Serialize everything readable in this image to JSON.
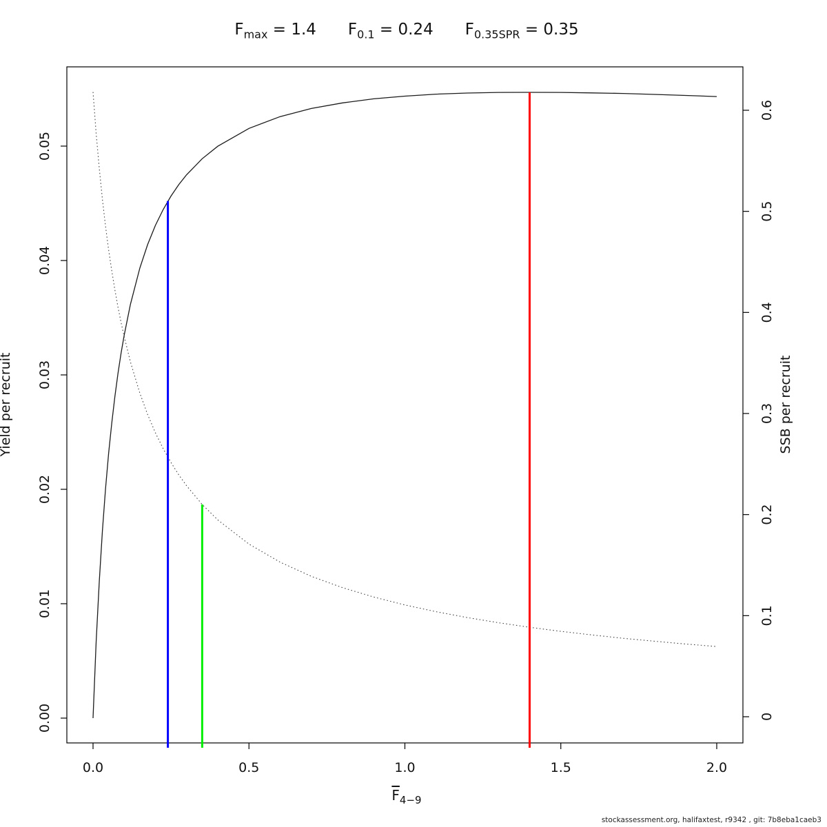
{
  "footer": "stockassessment.org, halifaxtest, r9342 , git: 7b8eba1caeb3",
  "chart_data": {
    "type": "line",
    "title_reference_points": [
      {
        "base": "F",
        "sub": "max",
        "eq": "=",
        "value": "1.4"
      },
      {
        "base": "F",
        "sub": "0.1",
        "eq": "=",
        "value": "0.24"
      },
      {
        "base": "F",
        "sub": "0.35SPR",
        "eq": "=",
        "value": "0.35"
      }
    ],
    "xlabel": {
      "base": "F",
      "overline": true,
      "sub": "4−9"
    },
    "ylabel_left": "Yield per recruit",
    "ylabel_right": "SSB per recruit",
    "x_axis": {
      "range": [
        0,
        2.0
      ],
      "ticks": [
        0.0,
        0.5,
        1.0,
        1.5,
        2.0
      ],
      "tick_labels": [
        "0.0",
        "0.5",
        "1.0",
        "1.5",
        "2.0"
      ]
    },
    "y_axis_left": {
      "range": [
        0,
        0.05
      ],
      "ticks": [
        0.0,
        0.01,
        0.02,
        0.03,
        0.04,
        0.05
      ],
      "tick_labels": [
        "0.00",
        "0.01",
        "0.02",
        "0.03",
        "0.04",
        "0.05"
      ]
    },
    "y_axis_right": {
      "range": [
        0,
        0.6
      ],
      "ticks": [
        0,
        0.1,
        0.2,
        0.3,
        0.4,
        0.5,
        0.6
      ],
      "tick_labels": [
        "0",
        "0.1",
        "0.2",
        "0.3",
        "0.4",
        "0.5",
        "0.6"
      ]
    },
    "grid": false,
    "legend": "none",
    "series": [
      {
        "name": "Yield per recruit",
        "axis": "left",
        "style": "solid",
        "color": "#1a1a1a",
        "x": [
          0,
          0.01,
          0.02,
          0.03,
          0.04,
          0.05,
          0.06,
          0.07,
          0.08,
          0.09,
          0.1,
          0.12,
          0.15,
          0.175,
          0.2,
          0.225,
          0.25,
          0.275,
          0.3,
          0.35,
          0.4,
          0.5,
          0.6,
          0.7,
          0.8,
          0.9,
          1.0,
          1.1,
          1.2,
          1.3,
          1.4,
          1.5,
          1.6,
          1.7,
          1.8,
          1.9,
          2.0
        ],
        "y": [
          0,
          0.00665,
          0.01199,
          0.01637,
          0.02003,
          0.02314,
          0.0258,
          0.02811,
          0.03013,
          0.03191,
          0.0335,
          0.03618,
          0.03934,
          0.04139,
          0.04307,
          0.04446,
          0.04563,
          0.04663,
          0.0475,
          0.0489,
          0.04999,
          0.05155,
          0.05258,
          0.05329,
          0.05378,
          0.05413,
          0.05437,
          0.05454,
          0.05464,
          0.05469,
          0.0547,
          0.05469,
          0.05465,
          0.0546,
          0.05452,
          0.05443,
          0.05433
        ]
      },
      {
        "name": "SSB per recruit",
        "axis": "right",
        "style": "dotted",
        "color": "#3c3c3c",
        "x": [
          0,
          0.01,
          0.02,
          0.03,
          0.04,
          0.05,
          0.06,
          0.07,
          0.08,
          0.09,
          0.1,
          0.12,
          0.15,
          0.175,
          0.2,
          0.225,
          0.25,
          0.275,
          0.3,
          0.35,
          0.4,
          0.5,
          0.6,
          0.7,
          0.8,
          0.9,
          1.0,
          1.1,
          1.2,
          1.3,
          1.4,
          1.5,
          1.6,
          1.7,
          1.8,
          1.9,
          2.0
        ],
        "y": [
          0.618,
          0.5771,
          0.5422,
          0.5119,
          0.4854,
          0.462,
          0.4411,
          0.4223,
          0.4053,
          0.3899,
          0.3758,
          0.3509,
          0.3202,
          0.299,
          0.2809,
          0.2652,
          0.2515,
          0.2393,
          0.2285,
          0.21,
          0.1947,
          0.1708,
          0.1529,
          0.1389,
          0.1277,
          0.1184,
          0.1106,
          0.1039,
          0.0981,
          0.093,
          0.0885,
          0.0845,
          0.0809,
          0.0776,
          0.0747,
          0.0719,
          0.0695
        ]
      }
    ],
    "reference_lines": [
      {
        "name": "F0.1",
        "x": 0.24,
        "color": "#0000ff",
        "top_axis": "left",
        "top_value": 0.0452
      },
      {
        "name": "F0.35SPR",
        "x": 0.35,
        "color": "#00ee00",
        "top_axis": "right",
        "top_value": 0.21
      },
      {
        "name": "Fmax",
        "x": 1.4,
        "color": "#ff0000",
        "top_axis": "left",
        "top_value": 0.0547
      }
    ]
  }
}
